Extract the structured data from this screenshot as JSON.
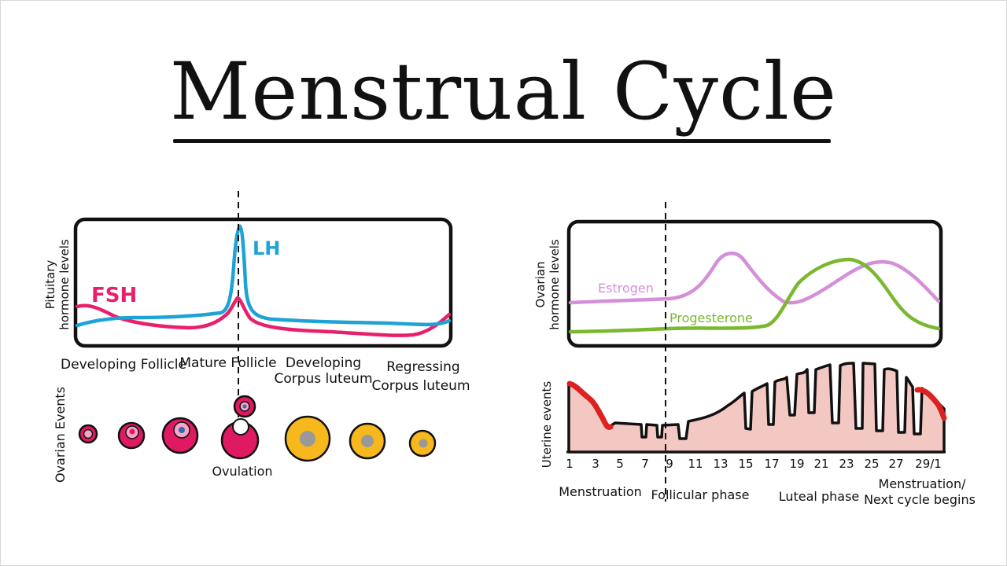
{
  "title": "Menstrual Cycle",
  "colors": {
    "fsh": "#e8206c",
    "lh": "#1ea3d6",
    "estrogen": "#d48fd8",
    "progesterone": "#7ab82e",
    "follicle_red": "#e01a62",
    "follicle_pink": "#f6a6c4",
    "follicle_yellow": "#f7b81e",
    "corpus_core": "#999999",
    "uterine_fill": "#f4c8c2",
    "menstruation_red": "#dd2020"
  },
  "pituitary_panel": {
    "ylabel_line1": "Pituitary",
    "ylabel_line2": "hormone levels",
    "fsh_label": "FSH",
    "lh_label": "LH"
  },
  "follicle_labels": {
    "developing_follicle": "Developing Follicle",
    "mature_follicle": "Mature Follicle",
    "developing_corpus_line1": "Developing",
    "developing_corpus_line2": "Corpus luteum",
    "regressing_corpus_line1": "Regressing",
    "regressing_corpus_line2": "Corpus luteum"
  },
  "ovarian_events": {
    "ylabel": "Ovarian Events",
    "ovulation_label": "Ovulation"
  },
  "ovarian_panel": {
    "ylabel_line1": "Ovarian",
    "ylabel_line2": "hormone levels",
    "estrogen_label": "Estrogen",
    "progesterone_label": "Progesterone"
  },
  "uterine_panel": {
    "ylabel": "Uterine events",
    "day_ticks": [
      "1",
      "3",
      "5",
      "7",
      "9",
      "11",
      "13",
      "15",
      "17",
      "19",
      "21",
      "23",
      "25",
      "27",
      "29/1"
    ]
  },
  "phase_labels": {
    "menstruation": "Menstruation",
    "follicular": "Follicular phase",
    "luteal": "Luteal phase",
    "next_line1": "Menstruation/",
    "next_line2": "Next cycle begins"
  }
}
